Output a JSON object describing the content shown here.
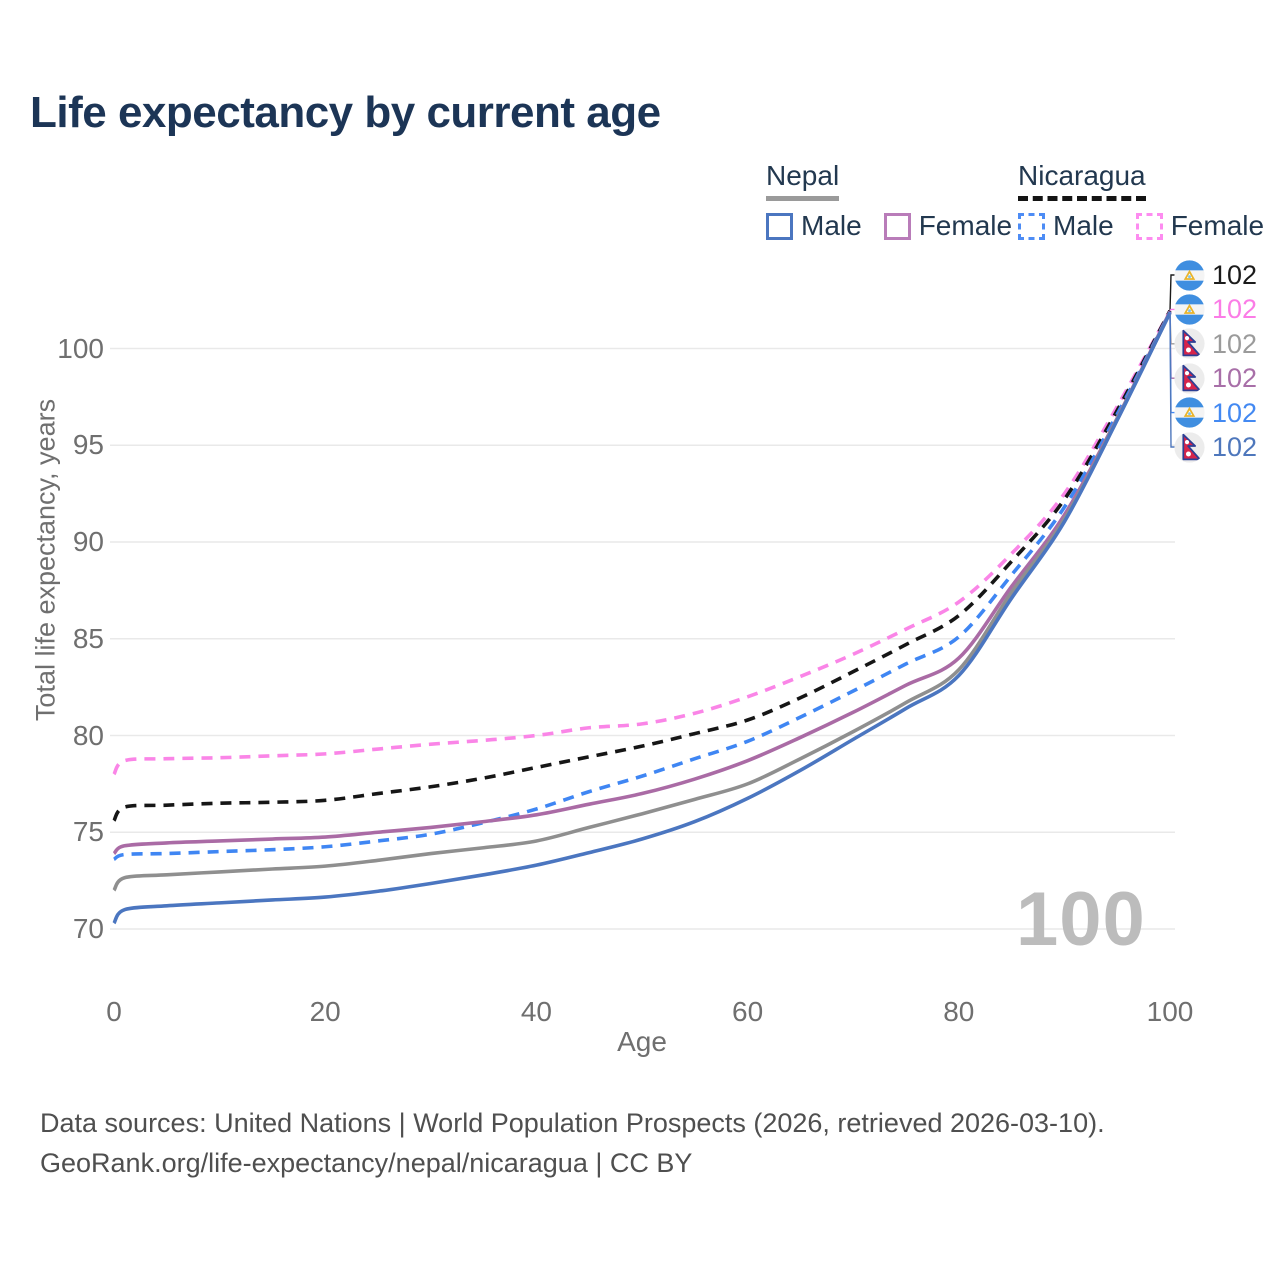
{
  "title": "Life expectancy by current age",
  "watermark": "100",
  "legend": {
    "groups": [
      {
        "label": "Nepal",
        "underline": {
          "color": "#9a9a9a",
          "style": "solid"
        },
        "items": [
          {
            "label": "Male",
            "color": "#4b76c0",
            "dashed": false
          },
          {
            "label": "Female",
            "color": "#b97cb9",
            "dashed": false
          }
        ]
      },
      {
        "label": "Nicaragua",
        "underline": {
          "color": "#141414",
          "style": "dashed"
        },
        "items": [
          {
            "label": "Male",
            "color": "#4d8cf5",
            "dashed": true
          },
          {
            "label": "Female",
            "color": "#fd8cf0",
            "dashed": true
          }
        ]
      }
    ]
  },
  "footer": {
    "line1": "Data sources: United Nations | World Population Prospects (2026, retrieved 2026-03-10).",
    "line2": "GeoRank.org/life-expectancy/nepal/nicaragua | CC BY"
  },
  "chart_data": {
    "type": "line",
    "title": "Life expectancy by current age",
    "xlabel": "Age",
    "ylabel": "Total life expectancy, years",
    "xlim": [
      0,
      100
    ],
    "ylim": [
      68.5,
      103
    ],
    "xticks": [
      0,
      20,
      40,
      60,
      80,
      100
    ],
    "yticks": [
      70,
      75,
      80,
      85,
      90,
      95,
      100
    ],
    "grid": "horizontal",
    "legend_position": "top-right",
    "x": [
      0,
      1,
      5,
      10,
      15,
      20,
      25,
      30,
      35,
      40,
      45,
      50,
      55,
      60,
      65,
      70,
      75,
      80,
      85,
      90,
      95,
      100
    ],
    "series": [
      {
        "key": "nicaragua-female",
        "name": "Nicaragua — Female",
        "color": "#fa85e7",
        "dashed": true,
        "values": [
          78.0,
          78.7,
          78.8,
          78.85,
          78.95,
          79.05,
          79.3,
          79.55,
          79.75,
          80.0,
          80.4,
          80.6,
          81.15,
          82.0,
          83.05,
          84.2,
          85.5,
          86.9,
          89.4,
          92.5,
          97.0,
          101.95
        ]
      },
      {
        "key": "nicaragua-both",
        "name": "Nicaragua — Both sexes",
        "color": "#161616",
        "dashed": true,
        "values": [
          75.6,
          76.3,
          76.4,
          76.5,
          76.55,
          76.65,
          77.0,
          77.35,
          77.8,
          78.35,
          78.9,
          79.45,
          80.1,
          80.8,
          81.95,
          83.3,
          84.7,
          86.2,
          89.0,
          92.2,
          96.8,
          101.95
        ]
      },
      {
        "key": "nicaragua-male",
        "name": "Nicaragua — Male",
        "color": "#3f86f3",
        "dashed": true,
        "values": [
          73.6,
          73.85,
          73.9,
          74.0,
          74.1,
          74.25,
          74.55,
          74.9,
          75.5,
          76.2,
          77.1,
          77.9,
          78.8,
          79.7,
          80.95,
          82.3,
          83.7,
          85.1,
          88.3,
          91.8,
          96.6,
          101.9
        ]
      },
      {
        "key": "nepal-female",
        "name": "Nepal — Female",
        "color": "#aa6ba5",
        "dashed": false,
        "values": [
          73.9,
          74.3,
          74.45,
          74.55,
          74.65,
          74.75,
          75.0,
          75.25,
          75.55,
          75.9,
          76.45,
          77.0,
          77.75,
          78.7,
          79.9,
          81.2,
          82.6,
          84.0,
          87.7,
          91.4,
          96.4,
          101.9
        ]
      },
      {
        "key": "nepal-both",
        "name": "Nepal — Both sexes",
        "color": "#8f8f8f",
        "dashed": false,
        "values": [
          72.0,
          72.65,
          72.8,
          72.95,
          73.1,
          73.25,
          73.55,
          73.9,
          74.2,
          74.55,
          75.25,
          75.95,
          76.7,
          77.5,
          78.8,
          80.2,
          81.7,
          83.4,
          87.4,
          91.2,
          96.35,
          101.85
        ]
      },
      {
        "key": "nepal-male",
        "name": "Nepal — Male",
        "color": "#4b76c0",
        "dashed": false,
        "values": [
          70.3,
          71.0,
          71.2,
          71.35,
          71.5,
          71.65,
          71.95,
          72.35,
          72.8,
          73.3,
          73.95,
          74.65,
          75.55,
          76.75,
          78.2,
          79.8,
          81.4,
          83.1,
          87.1,
          91.05,
          96.3,
          101.85
        ]
      }
    ],
    "end_labels": [
      {
        "flag": "nicaragua",
        "value": "102",
        "color": "#1b1b1b",
        "series": "nicaragua-both"
      },
      {
        "flag": "nicaragua",
        "value": "102",
        "color": "#fb7ce6",
        "series": "nicaragua-female"
      },
      {
        "flag": "nepal",
        "value": "102",
        "color": "#9b9b9b",
        "series": "nepal-both"
      },
      {
        "flag": "nepal",
        "value": "102",
        "color": "#a86fa8",
        "series": "nepal-female"
      },
      {
        "flag": "nicaragua",
        "value": "102",
        "color": "#4389f2",
        "series": "nicaragua-male"
      },
      {
        "flag": "nepal",
        "value": "102",
        "color": "#4e77bc",
        "series": "nepal-male"
      }
    ]
  }
}
